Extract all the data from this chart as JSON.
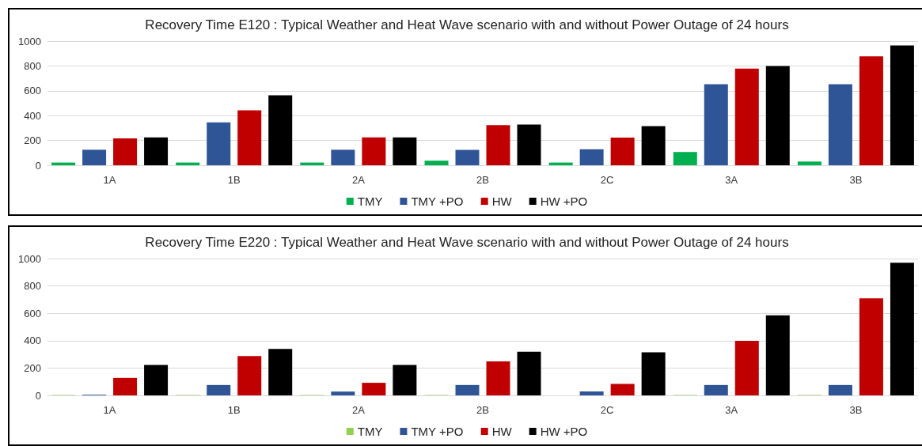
{
  "chart_data": [
    {
      "type": "bar",
      "title": "Recovery Time E120 : Typical Weather and Heat Wave scenario with and without Power Outage of 24 hours",
      "categories": [
        "1A",
        "1B",
        "2A",
        "2B",
        "2C",
        "3A",
        "3B"
      ],
      "series": [
        {
          "name": "TMY",
          "color": "#00b050",
          "values": [
            22,
            22,
            22,
            37,
            22,
            107,
            30
          ]
        },
        {
          "name": "TMY +PO",
          "color": "#2f5597",
          "values": [
            125,
            346,
            125,
            124,
            129,
            653,
            653
          ]
        },
        {
          "name": "HW",
          "color": "#c00000",
          "values": [
            216,
            442,
            224,
            323,
            223,
            779,
            878
          ]
        },
        {
          "name": "HW +PO",
          "color": "#000000",
          "values": [
            224,
            563,
            224,
            328,
            315,
            799,
            965
          ]
        }
      ],
      "ylim": [
        0,
        1000
      ],
      "yticks": [
        0,
        200,
        400,
        600,
        800,
        1000
      ],
      "grid": "y",
      "legend": "bottom"
    },
    {
      "type": "bar",
      "title": "Recovery Time E220 : Typical Weather and Heat Wave scenario with and without Power Outage of 24 hours",
      "categories": [
        "1A",
        "1B",
        "2A",
        "2B",
        "2C",
        "3A",
        "3B"
      ],
      "series": [
        {
          "name": "TMY",
          "color": "#92d050",
          "values": [
            3,
            3,
            3,
            3,
            0,
            3,
            3
          ]
        },
        {
          "name": "TMY +PO",
          "color": "#2f5597",
          "values": [
            5,
            76,
            28,
            76,
            29,
            76,
            76
          ]
        },
        {
          "name": "HW",
          "color": "#c00000",
          "values": [
            128,
            288,
            92,
            248,
            84,
            399,
            709
          ]
        },
        {
          "name": "HW +PO",
          "color": "#000000",
          "values": [
            222,
            340,
            222,
            320,
            315,
            585,
            969
          ]
        }
      ],
      "ylim": [
        0,
        1000
      ],
      "yticks": [
        0,
        200,
        400,
        600,
        800,
        1000
      ],
      "grid": "y",
      "legend": "bottom"
    }
  ]
}
